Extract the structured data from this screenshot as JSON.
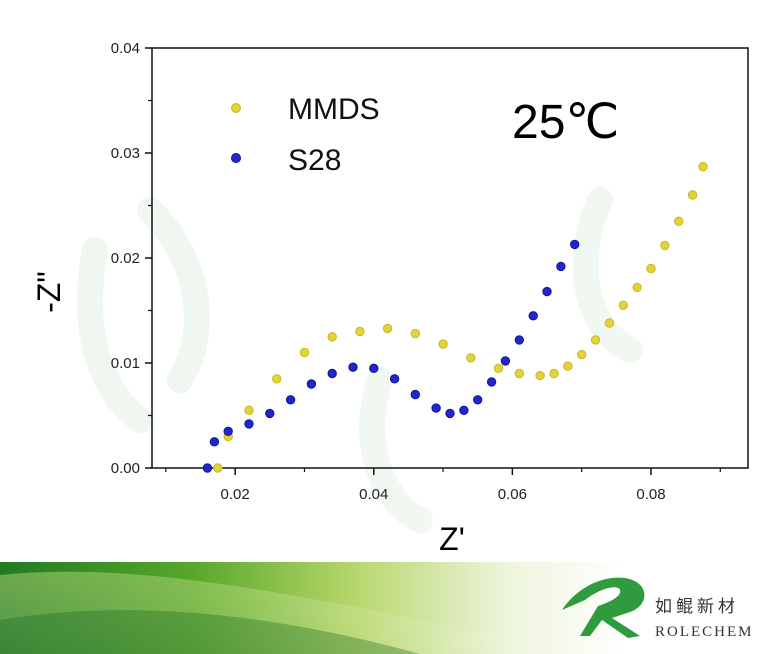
{
  "chart_data": {
    "type": "scatter",
    "xlabel": "Z'",
    "ylabel": "-Z\"",
    "xlim": [
      0.008,
      0.094
    ],
    "ylim": [
      0,
      0.04
    ],
    "xticks": [
      {
        "value": 0.02,
        "label": "0.02"
      },
      {
        "value": 0.04,
        "label": "0.04"
      },
      {
        "value": 0.06,
        "label": "0.06"
      },
      {
        "value": 0.08,
        "label": "0.08"
      }
    ],
    "yticks": [
      {
        "value": 0.0,
        "label": "0.00"
      },
      {
        "value": 0.01,
        "label": "0.01"
      },
      {
        "value": 0.02,
        "label": "0.02"
      },
      {
        "value": 0.03,
        "label": "0.03"
      },
      {
        "value": 0.04,
        "label": "0.04"
      }
    ],
    "annotation": "25℃",
    "legend_position": "top-left",
    "series": [
      {
        "name": "MMDS",
        "color": "#e3d23a",
        "x": [
          0.0175,
          0.019,
          0.022,
          0.026,
          0.03,
          0.034,
          0.038,
          0.042,
          0.046,
          0.05,
          0.054,
          0.058,
          0.061,
          0.064,
          0.066,
          0.068,
          0.07,
          0.072,
          0.074,
          0.076,
          0.078,
          0.08,
          0.082,
          0.084,
          0.086,
          0.0875
        ],
        "y": [
          0.0,
          0.003,
          0.0055,
          0.0085,
          0.011,
          0.0125,
          0.013,
          0.0133,
          0.0128,
          0.0118,
          0.0105,
          0.0095,
          0.009,
          0.0088,
          0.009,
          0.0097,
          0.0108,
          0.0122,
          0.0138,
          0.0155,
          0.0172,
          0.019,
          0.0212,
          0.0235,
          0.026,
          0.0287
        ]
      },
      {
        "name": "S28",
        "color": "#2326c8",
        "x": [
          0.016,
          0.017,
          0.019,
          0.022,
          0.025,
          0.028,
          0.031,
          0.034,
          0.037,
          0.04,
          0.043,
          0.046,
          0.049,
          0.051,
          0.053,
          0.055,
          0.057,
          0.059,
          0.061,
          0.063,
          0.065,
          0.067,
          0.069
        ],
        "y": [
          0.0,
          0.0025,
          0.0035,
          0.0042,
          0.0052,
          0.0065,
          0.008,
          0.009,
          0.0096,
          0.0095,
          0.0085,
          0.007,
          0.0057,
          0.0052,
          0.0055,
          0.0065,
          0.0082,
          0.0102,
          0.0122,
          0.0145,
          0.0168,
          0.0192,
          0.0213
        ]
      }
    ]
  },
  "brand": {
    "name_zh": "如鲲新材",
    "name_en": "ROLECHEM",
    "logo_color": "#2f9a3e"
  }
}
